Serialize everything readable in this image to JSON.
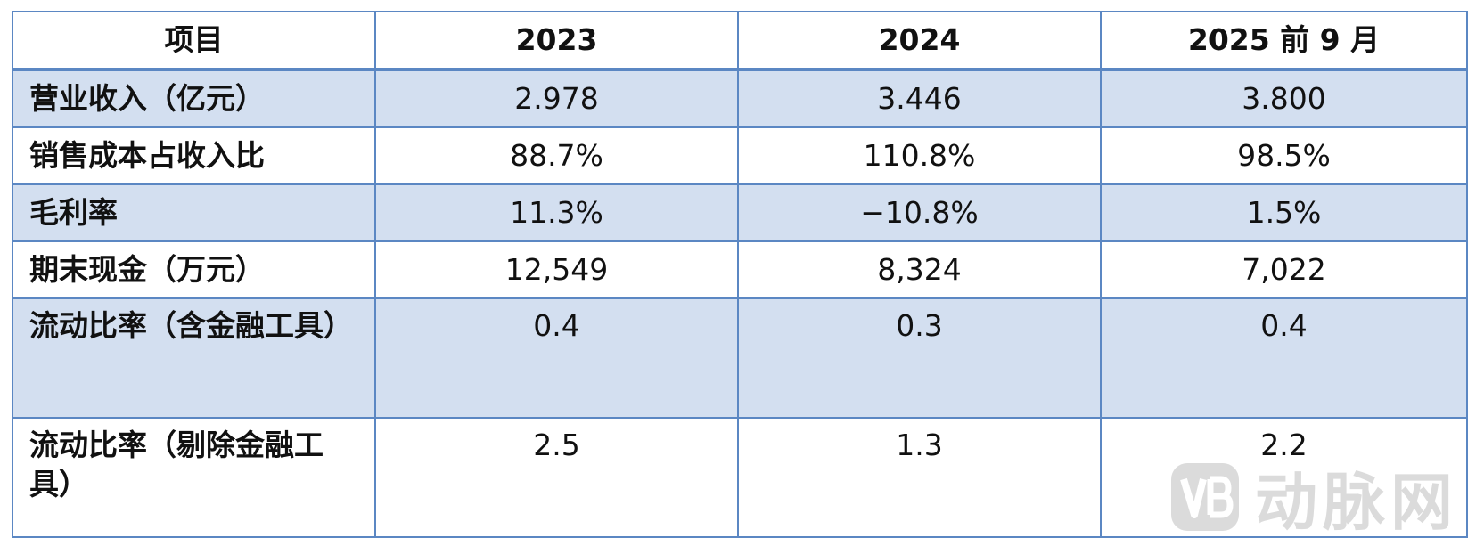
{
  "table": {
    "headers": [
      "项目",
      "2023",
      "2024",
      "2025 前 9 月"
    ],
    "rows": [
      {
        "label": "营业收入（亿元）",
        "values": [
          "2.978",
          "3.446",
          "3.800"
        ]
      },
      {
        "label": "销售成本占收入比",
        "values": [
          "88.7%",
          "110.8%",
          "98.5%"
        ]
      },
      {
        "label": "毛利率",
        "values": [
          "11.3%",
          "−10.8%",
          "1.5%"
        ]
      },
      {
        "label": "期末现金（万元）",
        "values": [
          "12,549",
          "8,324",
          "7,022"
        ]
      },
      {
        "label": "流动比率（含金融工具）",
        "values": [
          "0.4",
          "0.3",
          "0.4"
        ]
      },
      {
        "label": "流动比率（剔除金融工具）",
        "values": [
          "2.5",
          "1.3",
          "2.2"
        ]
      }
    ]
  },
  "colors": {
    "border": "#5b87c3",
    "shade": "#d3dff0"
  },
  "watermark": {
    "text": "动脉网",
    "logo_icon": "vb-logo-icon"
  }
}
